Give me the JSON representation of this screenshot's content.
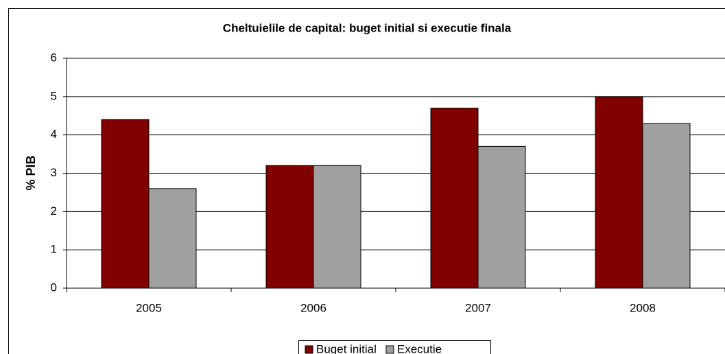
{
  "chart_data": {
    "type": "bar",
    "title": "Cheltuielile de capital: buget initial si executie finala",
    "y_label": "% PIB",
    "categories": [
      "2005",
      "2006",
      "2007",
      "2008"
    ],
    "series": [
      {
        "name": "Buget initial",
        "color": "#800000",
        "values": [
          4.4,
          3.2,
          4.7,
          5.0
        ]
      },
      {
        "name": "Executie",
        "color": "#a0a0a0",
        "values": [
          2.6,
          3.2,
          3.7,
          4.3
        ]
      }
    ],
    "ylim": [
      0,
      6
    ],
    "yticks": [
      0,
      1,
      2,
      3,
      4,
      5,
      6
    ],
    "grid": true,
    "legend": "bottom"
  }
}
